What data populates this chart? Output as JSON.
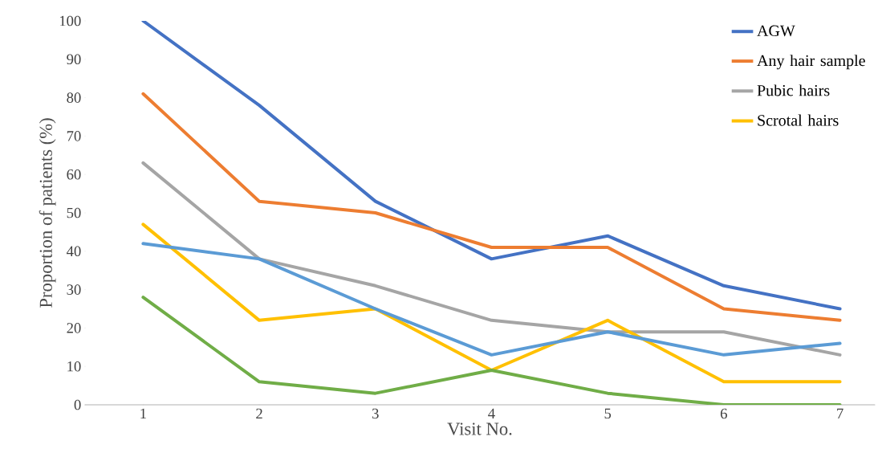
{
  "chart_data": {
    "type": "line",
    "xlabel": "Visit No.",
    "ylabel": "Proportion of patients (%)",
    "categories": [
      "1",
      "2",
      "3",
      "4",
      "5",
      "6",
      "7"
    ],
    "series": [
      {
        "name": "AGW",
        "color": "#4472c4",
        "values": [
          100,
          78,
          53,
          38,
          44,
          31,
          25
        ]
      },
      {
        "name": "Any hair sample",
        "color": "#ed7d31",
        "values": [
          81,
          53,
          50,
          41,
          41,
          25,
          22
        ]
      },
      {
        "name": "Pubic hairs",
        "color": "#a5a5a5",
        "values": [
          63,
          38,
          31,
          22,
          19,
          19,
          13
        ]
      },
      {
        "name": "Scrotal hairs",
        "color": "#ffc000",
        "values": [
          47,
          22,
          25,
          9,
          22,
          6,
          6
        ]
      },
      {
        "color": "#5b9bd5",
        "values": [
          42,
          38,
          25,
          13,
          19,
          13,
          16
        ]
      },
      {
        "color": "#70ad47",
        "values": [
          28,
          6,
          3,
          9,
          3,
          0,
          0
        ]
      }
    ],
    "ylim": [
      0,
      100
    ],
    "yticks": [
      0,
      10,
      20,
      30,
      40,
      50,
      60,
      70,
      80,
      90,
      100
    ],
    "legend": "top right",
    "marker": "none",
    "line_style": "solid"
  }
}
